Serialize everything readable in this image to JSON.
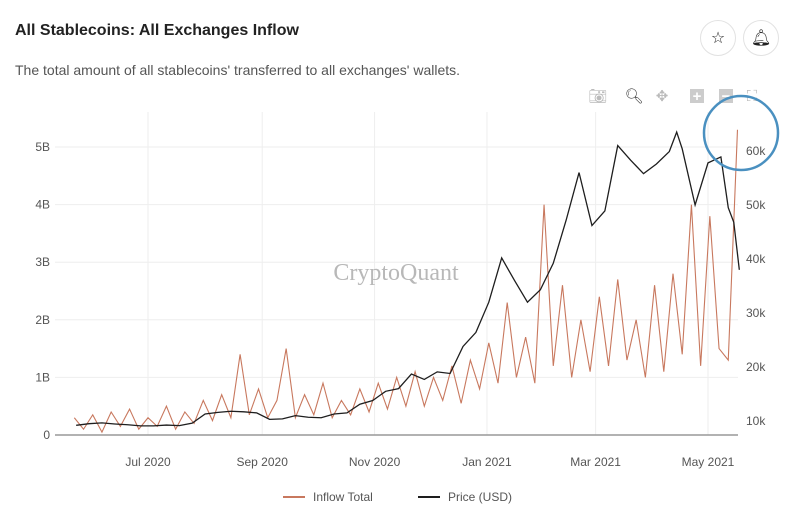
{
  "header": {
    "title": "All Stablecoins: All Exchanges Inflow",
    "subtitle": "The total amount of all stablecoins' transferred to all exchanges' wallets.",
    "star_icon": "star-icon",
    "bell_icon": "bell-icon"
  },
  "toolbar": [
    "camera-icon",
    "zoom-icon",
    "pan-icon",
    "zoom-in-icon",
    "zoom-out-icon",
    "autoscale-icon"
  ],
  "watermark": "CryptoQuant",
  "colors": {
    "inflow": "#c8785e",
    "price": "#1e1e1e",
    "highlight_circle": "#4a90c0"
  },
  "chart_data": {
    "type": "line",
    "title": "",
    "grid": true,
    "legend_position": "bottom",
    "x_ticks": [
      "Jul 2020",
      "Sep 2020",
      "Nov 2020",
      "Jan 2021",
      "Mar 2021",
      "May 2021"
    ],
    "x_tick_dates": [
      "2020-07-01",
      "2020-09-01",
      "2020-11-01",
      "2021-01-01",
      "2021-03-01",
      "2021-05-01"
    ],
    "y_left": {
      "ticks": [
        "0",
        "1B",
        "2B",
        "3B",
        "4B",
        "5B"
      ],
      "values": [
        0,
        1,
        2,
        3,
        4,
        5
      ],
      "unit": "billions",
      "range": [
        0,
        5.4
      ]
    },
    "y_right": {
      "ticks": [
        "10k",
        "20k",
        "30k",
        "40k",
        "50k",
        "60k"
      ],
      "values": [
        10000,
        20000,
        30000,
        40000,
        50000,
        60000
      ],
      "range": [
        7300,
        62000
      ]
    },
    "series": [
      {
        "name": "Inflow Total",
        "axis": "left",
        "x": [
          "2020-05-22",
          "2020-05-27",
          "2020-06-01",
          "2020-06-06",
          "2020-06-11",
          "2020-06-16",
          "2020-06-21",
          "2020-06-26",
          "2020-07-01",
          "2020-07-06",
          "2020-07-11",
          "2020-07-16",
          "2020-07-21",
          "2020-07-26",
          "2020-07-31",
          "2020-08-05",
          "2020-08-10",
          "2020-08-15",
          "2020-08-20",
          "2020-08-25",
          "2020-08-30",
          "2020-09-04",
          "2020-09-09",
          "2020-09-14",
          "2020-09-19",
          "2020-09-24",
          "2020-09-29",
          "2020-10-04",
          "2020-10-09",
          "2020-10-14",
          "2020-10-19",
          "2020-10-24",
          "2020-10-29",
          "2020-11-03",
          "2020-11-08",
          "2020-11-13",
          "2020-11-18",
          "2020-11-23",
          "2020-11-28",
          "2020-12-03",
          "2020-12-08",
          "2020-12-13",
          "2020-12-18",
          "2020-12-23",
          "2020-12-28",
          "2021-01-02",
          "2021-01-07",
          "2021-01-12",
          "2021-01-17",
          "2021-01-22",
          "2021-01-27",
          "2021-02-01",
          "2021-02-06",
          "2021-02-11",
          "2021-02-16",
          "2021-02-21",
          "2021-02-26",
          "2021-03-03",
          "2021-03-08",
          "2021-03-13",
          "2021-03-18",
          "2021-03-23",
          "2021-03-28",
          "2021-04-02",
          "2021-04-07",
          "2021-04-12",
          "2021-04-17",
          "2021-04-22",
          "2021-04-27",
          "2021-05-02",
          "2021-05-07",
          "2021-05-12",
          "2021-05-17"
        ],
        "values": [
          0.3,
          0.1,
          0.35,
          0.05,
          0.4,
          0.15,
          0.45,
          0.1,
          0.3,
          0.15,
          0.5,
          0.1,
          0.4,
          0.2,
          0.6,
          0.25,
          0.7,
          0.3,
          1.4,
          0.35,
          0.8,
          0.3,
          0.6,
          1.5,
          0.3,
          0.7,
          0.35,
          0.9,
          0.3,
          0.6,
          0.35,
          0.8,
          0.4,
          0.9,
          0.45,
          1.0,
          0.5,
          1.1,
          0.5,
          1.0,
          0.6,
          1.2,
          0.55,
          1.3,
          0.8,
          1.6,
          0.9,
          2.3,
          1.0,
          1.7,
          0.9,
          4.0,
          1.2,
          2.6,
          1.0,
          2.0,
          1.1,
          2.4,
          1.2,
          2.7,
          1.3,
          2.0,
          1.0,
          2.6,
          1.1,
          2.8,
          1.4,
          4.0,
          1.2,
          3.8,
          1.5,
          1.3,
          5.3
        ]
      },
      {
        "name": "Price (USD)",
        "axis": "right",
        "x": [
          "2020-05-23",
          "2020-05-30",
          "2020-06-06",
          "2020-06-13",
          "2020-06-20",
          "2020-06-27",
          "2020-07-04",
          "2020-07-11",
          "2020-07-18",
          "2020-07-25",
          "2020-08-01",
          "2020-08-08",
          "2020-08-15",
          "2020-08-22",
          "2020-08-29",
          "2020-09-05",
          "2020-09-12",
          "2020-09-19",
          "2020-09-26",
          "2020-10-03",
          "2020-10-10",
          "2020-10-17",
          "2020-10-24",
          "2020-10-31",
          "2020-11-07",
          "2020-11-14",
          "2020-11-21",
          "2020-11-28",
          "2020-12-05",
          "2020-12-12",
          "2020-12-19",
          "2020-12-26",
          "2021-01-02",
          "2021-01-09",
          "2021-01-16",
          "2021-01-23",
          "2021-01-30",
          "2021-02-06",
          "2021-02-13",
          "2021-02-20",
          "2021-02-27",
          "2021-03-06",
          "2021-03-13",
          "2021-03-20",
          "2021-03-27",
          "2021-04-03",
          "2021-04-10",
          "2021-04-14",
          "2021-04-17",
          "2021-04-24",
          "2021-05-01",
          "2021-05-08",
          "2021-05-12",
          "2021-05-15",
          "2021-05-18"
        ],
        "values": [
          9200,
          9500,
          9650,
          9450,
          9300,
          9100,
          9100,
          9250,
          9150,
          9600,
          11300,
          11600,
          11800,
          11700,
          11500,
          10300,
          10400,
          11000,
          10700,
          10600,
          11300,
          11500,
          13100,
          13800,
          15500,
          16000,
          18700,
          17700,
          19100,
          18800,
          23800,
          26400,
          32000,
          40200,
          36000,
          32000,
          34300,
          39200,
          47200,
          56000,
          46200,
          48900,
          61000,
          58300,
          55800,
          57600,
          59900,
          63500,
          60400,
          50000,
          57800,
          58900,
          49500,
          46800,
          38000
        ]
      }
    ]
  },
  "legend": [
    {
      "label": "Inflow Total"
    },
    {
      "label": "Price (USD)"
    }
  ]
}
